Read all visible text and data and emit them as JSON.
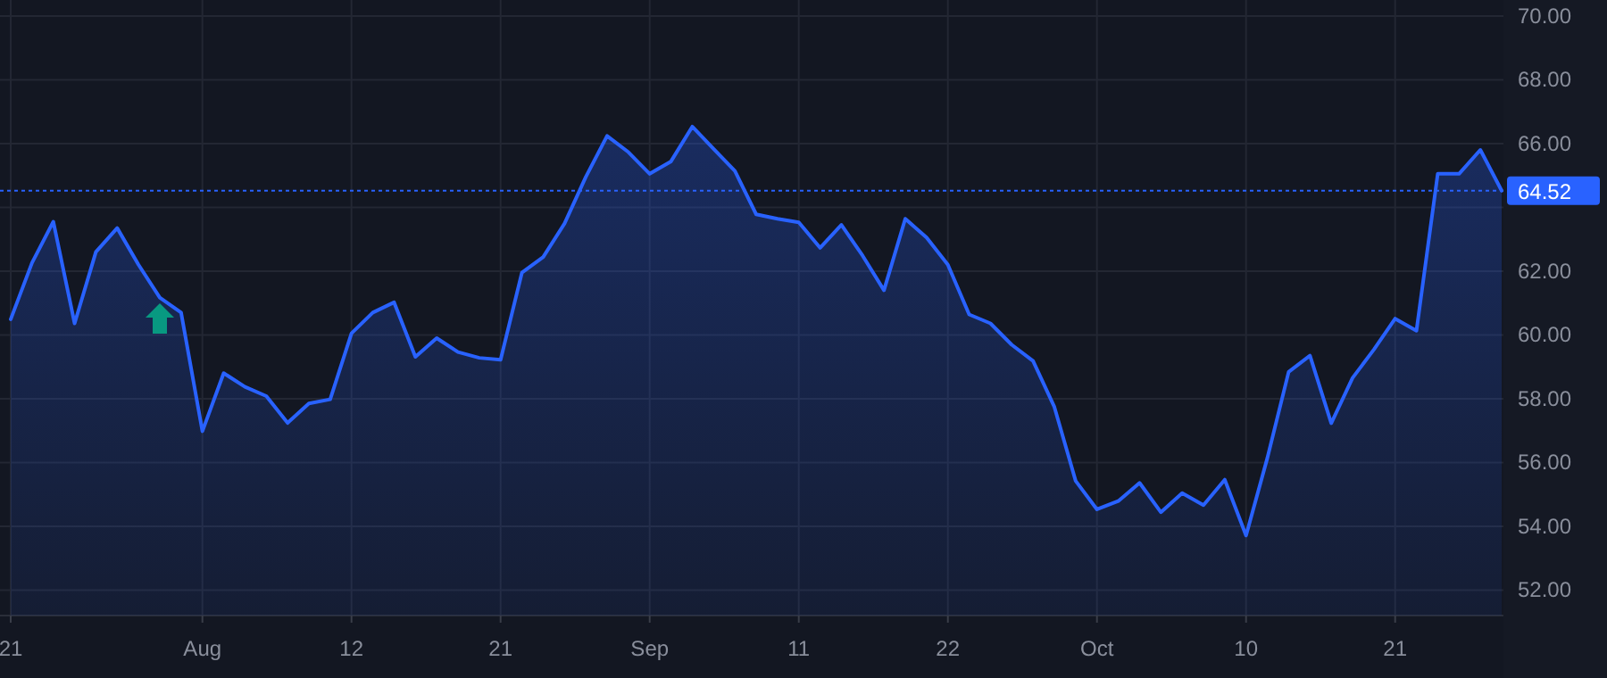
{
  "chart_data": {
    "type": "area",
    "categories": [
      "21",
      null,
      null,
      null,
      null,
      null,
      null,
      null,
      null,
      "Aug",
      null,
      null,
      null,
      null,
      null,
      null,
      "12",
      null,
      null,
      null,
      null,
      null,
      null,
      "21",
      null,
      null,
      null,
      null,
      null,
      null,
      "Sep",
      null,
      null,
      null,
      null,
      null,
      null,
      "11",
      null,
      null,
      null,
      null,
      null,
      null,
      "22",
      null,
      null,
      null,
      null,
      null,
      null,
      "Oct",
      null,
      null,
      null,
      null,
      null,
      null,
      "10",
      null,
      null,
      null,
      null,
      null,
      null,
      "21",
      null,
      null,
      null,
      null,
      null
    ],
    "series": [
      {
        "color": "#2962ff",
        "values": [
          60.49,
          62.26,
          63.55,
          60.36,
          62.6,
          63.35,
          62.2,
          61.17,
          60.7,
          56.98,
          58.8,
          58.37,
          58.08,
          57.24,
          57.85,
          57.98,
          60.05,
          60.7,
          61.02,
          59.31,
          59.9,
          59.46,
          59.28,
          59.22,
          61.95,
          62.44,
          63.49,
          64.95,
          66.24,
          65.73,
          65.05,
          65.44,
          66.53,
          65.83,
          65.14,
          63.78,
          63.64,
          63.53,
          62.73,
          63.45,
          62.48,
          61.4,
          63.64,
          63.05,
          62.2,
          60.64,
          60.36,
          59.69,
          59.18,
          57.74,
          55.42,
          54.53,
          54.79,
          55.36,
          54.44,
          55.04,
          54.66,
          55.46,
          53.71,
          56.14,
          58.84,
          59.35,
          57.23,
          58.65,
          59.54,
          60.51,
          60.13,
          65.05,
          65.05,
          65.8,
          64.52
        ]
      }
    ],
    "ylim": [
      51.2,
      70.5
    ],
    "yticks": [
      {
        "value": 52,
        "label": "52.00"
      },
      {
        "value": 54,
        "label": "54.00"
      },
      {
        "value": 56,
        "label": "56.00"
      },
      {
        "value": 58,
        "label": "58.00"
      },
      {
        "value": 60,
        "label": "60.00"
      },
      {
        "value": 62,
        "label": "62.00"
      },
      {
        "value": 64,
        "label": null
      },
      {
        "value": 66,
        "label": "66.00"
      },
      {
        "value": 68,
        "label": "68.00"
      },
      {
        "value": 70,
        "label": "70.00"
      }
    ],
    "ref_lines": [
      {
        "axis": "y",
        "value": 64.52,
        "label": "64.52",
        "color": "#2962ff",
        "line_style": "dotted"
      }
    ],
    "grid": true,
    "marker": "none",
    "line_style": "solid"
  }
}
